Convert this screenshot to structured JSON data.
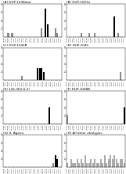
{
  "chart_data": [
    {
      "type": "bar",
      "title": "(A) DUP-1038aaa",
      "categories": [
        "Jan-88",
        "Jul-88",
        "Jan-89",
        "Jul-89",
        "Jan-90",
        "Jul-90",
        "Jan-91",
        "Jul-91",
        "Jan-92",
        "Jul-92",
        "Jan-93",
        "Jul-93",
        "Jan-94",
        "Jul-94",
        "Jan-95",
        "Jul-95",
        "Jan-96",
        "Jul-96",
        "Jan-97",
        "Jul-97",
        "Jan-98",
        "Jul-98",
        "Jan-99",
        "Jul-99",
        "Jan-00",
        "Jul-00",
        "Jan-01",
        "Jul-01",
        "Jan-02",
        "Jul-02"
      ],
      "values": [
        0,
        0,
        1,
        0,
        1,
        0,
        0,
        0,
        0,
        0,
        0,
        0,
        0,
        0,
        0,
        0,
        0,
        0,
        0,
        2,
        0,
        7,
        3,
        0,
        0,
        0,
        2,
        1,
        0,
        0
      ],
      "colors": [
        "#888888",
        "#888888",
        "#888888",
        "#888888",
        "#888888",
        "#888888",
        "#888888",
        "#888888",
        "#888888",
        "#888888",
        "#888888",
        "#888888",
        "#888888",
        "#888888",
        "#888888",
        "#888888",
        "#888888",
        "#888888",
        "#888888",
        "#888888",
        "#888888",
        "#000000",
        "#000000",
        "#888888",
        "#888888",
        "#888888",
        "#888888",
        "#888888",
        "#888888",
        "#888888"
      ],
      "ylim": [
        0,
        8
      ],
      "yticks": [
        2,
        4,
        6,
        8
      ]
    },
    {
      "type": "bar",
      "title": "(B) DUP-1051a",
      "categories": [
        "Jan-88",
        "Jul-88",
        "Jan-89",
        "Jul-89",
        "Jan-90",
        "Jul-90",
        "Jan-91",
        "Jul-91",
        "Jan-92",
        "Jul-92",
        "Jan-93",
        "Jul-93",
        "Jan-94",
        "Jul-94",
        "Jan-95",
        "Jul-95",
        "Jan-96",
        "Jul-96",
        "Jan-97",
        "Jul-97",
        "Jan-98",
        "Jul-98",
        "Jan-99",
        "Jul-99",
        "Jan-00",
        "Jul-00",
        "Jan-01",
        "Jul-01",
        "Jan-02",
        "Jul-02"
      ],
      "values": [
        0,
        0,
        0,
        0,
        0,
        0,
        0,
        1,
        0,
        0,
        0,
        1,
        0,
        0,
        1,
        0,
        0,
        0,
        0,
        0,
        0,
        0,
        0,
        0,
        5,
        0,
        1,
        0,
        0,
        0
      ],
      "colors": [
        "#888888",
        "#888888",
        "#888888",
        "#888888",
        "#888888",
        "#888888",
        "#888888",
        "#888888",
        "#888888",
        "#888888",
        "#888888",
        "#888888",
        "#888888",
        "#888888",
        "#888888",
        "#888888",
        "#888888",
        "#888888",
        "#888888",
        "#888888",
        "#888888",
        "#888888",
        "#888888",
        "#888888",
        "#000000",
        "#888888",
        "#888888",
        "#888888",
        "#888888",
        "#888888"
      ],
      "ylim": [
        0,
        8
      ],
      "yticks": [
        2,
        4,
        6,
        8
      ]
    },
    {
      "type": "bar",
      "title": "(C) DUP-1042B",
      "categories": [
        "Jan-88",
        "Jul-88",
        "Jan-89",
        "Jul-89",
        "Jan-90",
        "Jul-90",
        "Jan-91",
        "Jul-91",
        "Jan-92",
        "Jul-92",
        "Jan-93",
        "Jul-93",
        "Jan-94",
        "Jul-94",
        "Jan-95",
        "Jul-95",
        "Jan-96",
        "Jul-96",
        "Jan-97",
        "Jul-97",
        "Jan-98",
        "Jul-98",
        "Jan-99",
        "Jul-99",
        "Jan-00",
        "Jul-00",
        "Jan-01",
        "Jul-01",
        "Jan-02",
        "Jul-02"
      ],
      "values": [
        0,
        0,
        0,
        0,
        0,
        0,
        0,
        0,
        0,
        1,
        0,
        0,
        0,
        0,
        0,
        0,
        0,
        3,
        3,
        3,
        2,
        0,
        0,
        0,
        0,
        0,
        0,
        0,
        0,
        0
      ],
      "colors": [
        "#888888",
        "#888888",
        "#888888",
        "#888888",
        "#888888",
        "#888888",
        "#888888",
        "#888888",
        "#888888",
        "#888888",
        "#888888",
        "#888888",
        "#888888",
        "#888888",
        "#888888",
        "#888888",
        "#888888",
        "#000000",
        "#000000",
        "#000000",
        "#000000",
        "#888888",
        "#888888",
        "#888888",
        "#888888",
        "#888888",
        "#888888",
        "#888888",
        "#888888",
        "#888888"
      ],
      "ylim": [
        0,
        8
      ],
      "yticks": [
        2,
        4,
        6,
        8
      ]
    },
    {
      "type": "bar",
      "title": "(D) DUP-1045",
      "categories": [
        "Jan-88",
        "Jul-88",
        "Jan-89",
        "Jul-89",
        "Jan-90",
        "Jul-90",
        "Jan-91",
        "Jul-91",
        "Jan-92",
        "Jul-92",
        "Jan-93",
        "Jul-93",
        "Jan-94",
        "Jul-94",
        "Jan-95",
        "Jul-95",
        "Jan-96",
        "Jul-96",
        "Jan-97",
        "Jul-97",
        "Jan-98",
        "Jul-98",
        "Jan-99",
        "Jul-99",
        "Jan-00",
        "Jul-00",
        "Jan-01",
        "Jul-01",
        "Jan-02",
        "Jul-02"
      ],
      "values": [
        0,
        0,
        0,
        0,
        0,
        0,
        0,
        0,
        0,
        0,
        0,
        0,
        0,
        0,
        0,
        0,
        0,
        0,
        0,
        0,
        0,
        0,
        0,
        0,
        0,
        0,
        0,
        2,
        0,
        0
      ],
      "colors": [
        "#888888",
        "#888888",
        "#888888",
        "#888888",
        "#888888",
        "#888888",
        "#888888",
        "#888888",
        "#888888",
        "#888888",
        "#888888",
        "#888888",
        "#888888",
        "#888888",
        "#888888",
        "#888888",
        "#888888",
        "#888888",
        "#888888",
        "#888888",
        "#888888",
        "#888888",
        "#888888",
        "#888888",
        "#888888",
        "#888888",
        "#888888",
        "#888888",
        "#888888",
        "#888888"
      ],
      "ylim": [
        0,
        8
      ],
      "yticks": [
        2,
        4,
        6,
        8
      ]
    },
    {
      "type": "bar",
      "title": "(E) 116-363-S-2*",
      "categories": [
        "Jan-88",
        "Jul-88",
        "Jan-89",
        "Jul-89",
        "Jan-90",
        "Jul-90",
        "Jan-91",
        "Jul-91",
        "Jan-92",
        "Jul-92",
        "Jan-93",
        "Jul-93",
        "Jan-94",
        "Jul-94",
        "Jan-95",
        "Jul-95",
        "Jan-96",
        "Jul-96",
        "Jan-97",
        "Jul-97",
        "Jan-98",
        "Jul-98",
        "Jan-99",
        "Jul-99",
        "Jan-00",
        "Jul-00",
        "Jan-01",
        "Jul-01",
        "Jan-02",
        "Jul-02"
      ],
      "values": [
        0,
        0,
        0,
        0,
        0,
        0,
        0,
        0,
        0,
        0,
        0,
        0,
        0,
        0,
        0,
        0,
        0,
        0,
        0,
        0,
        0,
        0,
        0,
        4,
        0,
        0,
        0,
        0,
        0,
        0
      ],
      "colors": [
        "#888888",
        "#888888",
        "#888888",
        "#888888",
        "#888888",
        "#888888",
        "#888888",
        "#888888",
        "#888888",
        "#888888",
        "#888888",
        "#888888",
        "#888888",
        "#888888",
        "#888888",
        "#888888",
        "#888888",
        "#888888",
        "#888888",
        "#888888",
        "#888888",
        "#888888",
        "#888888",
        "#000000",
        "#888888",
        "#888888",
        "#888888",
        "#888888",
        "#888888",
        "#888888"
      ],
      "ylim": [
        0,
        8
      ],
      "yticks": [
        2,
        4,
        6,
        8
      ]
    },
    {
      "type": "bar",
      "title": "(F) DUP-1048B",
      "categories": [
        "Jan-88",
        "Jul-88",
        "Jan-89",
        "Jul-89",
        "Jan-90",
        "Jul-90",
        "Jan-91",
        "Jul-91",
        "Jan-92",
        "Jul-92",
        "Jan-93",
        "Jul-93",
        "Jan-94",
        "Jul-94",
        "Jan-95",
        "Jul-95",
        "Jan-96",
        "Jul-96",
        "Jan-97",
        "Jul-97",
        "Jan-98",
        "Jul-98",
        "Jan-99",
        "Jul-99",
        "Jan-00",
        "Jul-00",
        "Jan-01",
        "Jul-01",
        "Jan-02",
        "Jul-02"
      ],
      "values": [
        2,
        0,
        0,
        0,
        0,
        0,
        0,
        0,
        0,
        0,
        0,
        0,
        0,
        0,
        0,
        0,
        0,
        0,
        0,
        0,
        0,
        0,
        0,
        0,
        0,
        0,
        0,
        0,
        0,
        4
      ],
      "colors": [
        "#888888",
        "#888888",
        "#888888",
        "#888888",
        "#888888",
        "#888888",
        "#888888",
        "#888888",
        "#888888",
        "#888888",
        "#888888",
        "#888888",
        "#888888",
        "#888888",
        "#888888",
        "#888888",
        "#888888",
        "#888888",
        "#888888",
        "#888888",
        "#888888",
        "#888888",
        "#888888",
        "#888888",
        "#888888",
        "#888888",
        "#888888",
        "#888888",
        "#888888",
        "#000000"
      ],
      "ylim": [
        0,
        8
      ],
      "yticks": [
        2,
        4,
        6,
        8
      ]
    },
    {
      "type": "bar",
      "title": "(G) S. Agona",
      "categories": [
        "Jan-88",
        "Jul-88",
        "Jan-89",
        "Jul-89",
        "Jan-90",
        "Jul-90",
        "Jan-91",
        "Jul-91",
        "Jan-92",
        "Jul-92",
        "Jan-93",
        "Jul-93",
        "Jan-94",
        "Jul-94",
        "Jan-95",
        "Jul-95",
        "Jan-96",
        "Jul-96",
        "Jan-97",
        "Jul-97",
        "Jan-98",
        "Jul-98",
        "Jan-99",
        "Jul-99",
        "Jan-00",
        "Jul-00",
        "Jan-01",
        "Jul-01",
        "Jan-02",
        "Jul-02"
      ],
      "values": [
        0,
        0,
        0,
        0,
        0,
        0,
        0,
        0,
        0,
        0,
        0,
        0,
        0,
        0,
        0,
        0,
        0,
        0,
        0,
        0,
        0,
        0,
        0,
        0,
        0,
        1,
        3,
        2,
        0,
        0
      ],
      "colors": [
        "#888888",
        "#888888",
        "#888888",
        "#888888",
        "#888888",
        "#888888",
        "#888888",
        "#888888",
        "#888888",
        "#888888",
        "#888888",
        "#888888",
        "#888888",
        "#888888",
        "#888888",
        "#888888",
        "#888888",
        "#888888",
        "#888888",
        "#888888",
        "#888888",
        "#888888",
        "#888888",
        "#888888",
        "#888888",
        "#888888",
        "#000000",
        "#000000",
        "#888888",
        "#888888"
      ],
      "ylim": [
        0,
        8
      ],
      "yticks": [
        2,
        4,
        6,
        8
      ]
    },
    {
      "type": "bar",
      "title": "(H) All other ribotypes",
      "categories": [
        "Jan-88",
        "Jul-88",
        "Jan-89",
        "Jul-89",
        "Jan-90",
        "Jul-90",
        "Jan-91",
        "Jul-91",
        "Jan-92",
        "Jul-92",
        "Jan-93",
        "Jul-93",
        "Jan-94",
        "Jul-94",
        "Jan-95",
        "Jul-95",
        "Jan-96",
        "Jul-96",
        "Jan-97",
        "Jul-97",
        "Jan-98",
        "Jul-98",
        "Jan-99",
        "Jul-99",
        "Jan-00",
        "Jul-00",
        "Jan-01",
        "Jul-01",
        "Jan-02",
        "Jul-02"
      ],
      "values": [
        1,
        0,
        2,
        1,
        1,
        2,
        1,
        2,
        1,
        3,
        1,
        1,
        2,
        1,
        2,
        1,
        1,
        2,
        1,
        3,
        1,
        2,
        3,
        2,
        3,
        2,
        1,
        2,
        2,
        1
      ],
      "colors": [
        "#aaaaaa",
        "#aaaaaa",
        "#aaaaaa",
        "#aaaaaa",
        "#aaaaaa",
        "#aaaaaa",
        "#aaaaaa",
        "#aaaaaa",
        "#aaaaaa",
        "#aaaaaa",
        "#aaaaaa",
        "#aaaaaa",
        "#aaaaaa",
        "#aaaaaa",
        "#aaaaaa",
        "#aaaaaa",
        "#aaaaaa",
        "#aaaaaa",
        "#aaaaaa",
        "#aaaaaa",
        "#aaaaaa",
        "#aaaaaa",
        "#aaaaaa",
        "#aaaaaa",
        "#aaaaaa",
        "#aaaaaa",
        "#aaaaaa",
        "#aaaaaa",
        "#aaaaaa",
        "#aaaaaa"
      ],
      "ylim": [
        0,
        8
      ],
      "yticks": [
        2,
        4,
        6,
        8
      ]
    }
  ]
}
